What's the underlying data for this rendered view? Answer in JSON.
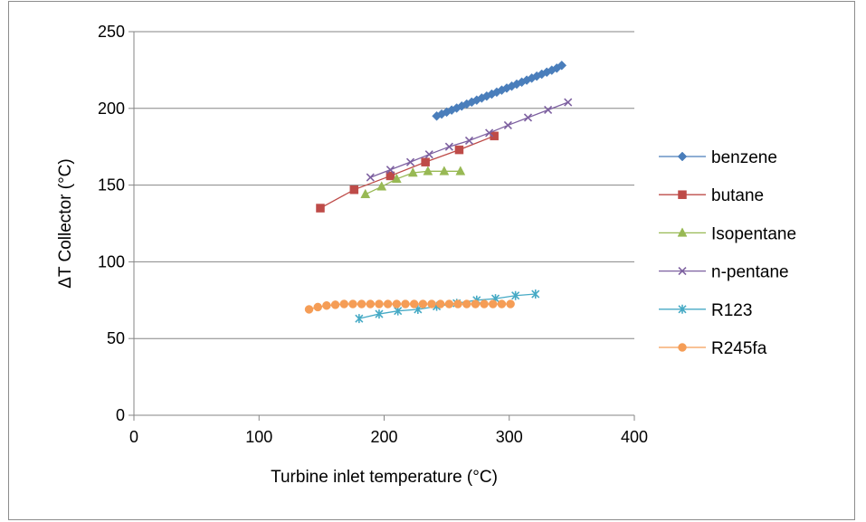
{
  "chart_data": {
    "type": "scatter",
    "title": "",
    "xlabel": "Turbine inlet temperature (°C)",
    "ylabel": "ΔT Collector (°C)",
    "xlim": [
      0,
      400
    ],
    "ylim": [
      0,
      250
    ],
    "xticks": [
      0,
      100,
      200,
      300,
      400
    ],
    "yticks": [
      0,
      50,
      100,
      150,
      200,
      250
    ],
    "grid": "horizontal",
    "legend": "right",
    "series": [
      {
        "name": "benzene",
        "color": "#4a7ebb",
        "marker": "diamond",
        "x": [
          242,
          246,
          250,
          254,
          258,
          262,
          266,
          270,
          274,
          278,
          282,
          286,
          290,
          294,
          298,
          302,
          306,
          310,
          314,
          318,
          322,
          326,
          330,
          334,
          338,
          342
        ],
        "y": [
          195,
          196.3,
          197.6,
          198.9,
          200.2,
          201.5,
          202.8,
          204.1,
          205.4,
          206.7,
          208,
          209.3,
          210.6,
          211.9,
          213.2,
          214.5,
          215.8,
          217.1,
          218.4,
          219.7,
          221,
          222.3,
          223.6,
          224.9,
          226.2,
          228
        ]
      },
      {
        "name": "butane",
        "color": "#be4b48",
        "marker": "square",
        "x": [
          149,
          176,
          205,
          233,
          260,
          288
        ],
        "y": [
          135,
          147,
          156,
          165,
          173,
          182
        ]
      },
      {
        "name": "Isopentane",
        "color": "#98b954",
        "marker": "triangle",
        "x": [
          185,
          198,
          210,
          223,
          235,
          248,
          261
        ],
        "y": [
          144,
          149,
          154,
          158,
          159,
          159,
          159
        ]
      },
      {
        "name": "n-pentane",
        "color": "#7d60a0",
        "marker": "x",
        "x": [
          189,
          205,
          221,
          236,
          252,
          268,
          284,
          299,
          315,
          331,
          347
        ],
        "y": [
          155,
          160,
          165,
          170,
          175,
          179,
          184,
          189,
          194,
          199,
          204
        ]
      },
      {
        "name": "R123",
        "color": "#46aac5",
        "marker": "star",
        "x": [
          180,
          196,
          211,
          227,
          242,
          258,
          274,
          289,
          305,
          321
        ],
        "y": [
          63,
          66,
          68,
          69,
          71,
          73,
          75,
          76,
          78,
          79
        ]
      },
      {
        "name": "R245fa",
        "color": "#f59d56",
        "marker": "circle",
        "x": [
          140,
          147,
          154,
          161,
          168,
          175,
          182,
          189,
          196,
          203,
          210,
          217,
          224,
          231,
          238,
          245,
          252,
          259,
          266,
          273,
          280,
          287,
          294,
          301
        ],
        "y": [
          69,
          70.5,
          71.5,
          72,
          72.5,
          72.5,
          72.5,
          72.5,
          72.5,
          72.5,
          72.5,
          72.5,
          72.5,
          72.5,
          72.5,
          72.5,
          72.5,
          72.5,
          72.5,
          72.5,
          72.5,
          72.5,
          72.5,
          72.5
        ]
      }
    ]
  }
}
